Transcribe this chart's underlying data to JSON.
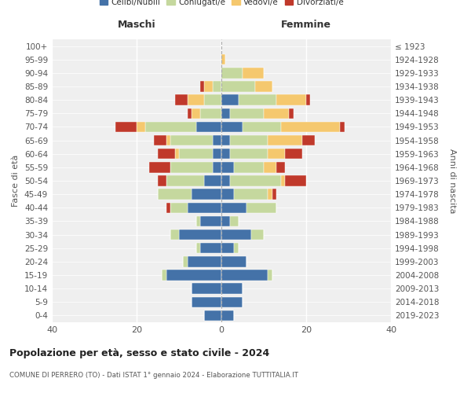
{
  "age_groups": [
    "0-4",
    "5-9",
    "10-14",
    "15-19",
    "20-24",
    "25-29",
    "30-34",
    "35-39",
    "40-44",
    "45-49",
    "50-54",
    "55-59",
    "60-64",
    "65-69",
    "70-74",
    "75-79",
    "80-84",
    "85-89",
    "90-94",
    "95-99",
    "100+"
  ],
  "birth_years": [
    "2019-2023",
    "2014-2018",
    "2009-2013",
    "2004-2008",
    "1999-2003",
    "1994-1998",
    "1989-1993",
    "1984-1988",
    "1979-1983",
    "1974-1978",
    "1969-1973",
    "1964-1968",
    "1959-1963",
    "1954-1958",
    "1949-1953",
    "1944-1948",
    "1939-1943",
    "1934-1938",
    "1929-1933",
    "1924-1928",
    "≤ 1923"
  ],
  "colors": {
    "celibi": "#4472a8",
    "coniugati": "#c5d89e",
    "vedovi": "#f5c86e",
    "divorziati": "#c0392b"
  },
  "males": {
    "celibi": [
      4,
      7,
      7,
      13,
      8,
      5,
      10,
      5,
      8,
      7,
      4,
      2,
      2,
      2,
      6,
      0,
      0,
      0,
      0,
      0,
      0
    ],
    "coniugati": [
      0,
      0,
      0,
      1,
      1,
      1,
      2,
      1,
      4,
      8,
      9,
      10,
      8,
      10,
      12,
      5,
      4,
      2,
      0,
      0,
      0
    ],
    "vedovi": [
      0,
      0,
      0,
      0,
      0,
      0,
      0,
      0,
      0,
      0,
      0,
      0,
      1,
      1,
      2,
      2,
      4,
      2,
      0,
      0,
      0
    ],
    "divorziati": [
      0,
      0,
      0,
      0,
      0,
      0,
      0,
      0,
      1,
      0,
      2,
      5,
      4,
      3,
      5,
      1,
      3,
      1,
      0,
      0,
      0
    ]
  },
  "females": {
    "celibi": [
      3,
      5,
      5,
      11,
      6,
      3,
      7,
      2,
      6,
      3,
      2,
      3,
      2,
      2,
      5,
      2,
      4,
      0,
      0,
      0,
      0
    ],
    "coniugati": [
      0,
      0,
      0,
      1,
      0,
      1,
      3,
      2,
      7,
      8,
      12,
      7,
      9,
      9,
      9,
      8,
      9,
      8,
      5,
      0,
      0
    ],
    "vedovi": [
      0,
      0,
      0,
      0,
      0,
      0,
      0,
      0,
      0,
      1,
      1,
      3,
      4,
      8,
      14,
      6,
      7,
      4,
      5,
      1,
      0
    ],
    "divorziati": [
      0,
      0,
      0,
      0,
      0,
      0,
      0,
      0,
      0,
      1,
      5,
      2,
      4,
      3,
      1,
      1,
      1,
      0,
      0,
      0,
      0
    ]
  },
  "title": "Popolazione per età, sesso e stato civile - 2024",
  "subtitle": "COMUNE DI PERRERO (TO) - Dati ISTAT 1° gennaio 2024 - Elaborazione TUTTITALIA.IT",
  "xlabel_left": "Maschi",
  "xlabel_right": "Femmine",
  "ylabel_left": "Fasce di età",
  "ylabel_right": "Anni di nascita",
  "xlim": 40,
  "legend_labels": [
    "Celibi/Nubili",
    "Coniugati/e",
    "Vedovi/e",
    "Divorziati/e"
  ],
  "bg_color": "#ffffff",
  "plot_bg_color": "#efefef",
  "grid_color": "#ffffff"
}
